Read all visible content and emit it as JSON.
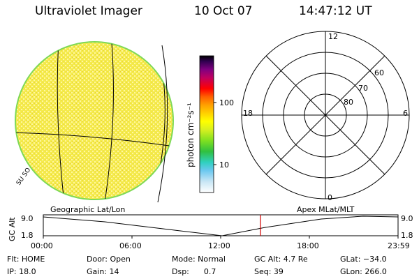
{
  "header": {
    "title": "Ultraviolet Imager",
    "date": "10 Oct 07",
    "time": "14:47:12 UT"
  },
  "colorbar": {
    "unit_label": "photon cm⁻²s⁻¹",
    "tick_100": "100",
    "tick_10": "10",
    "stops": [
      "#ffffff",
      "#c8e6f5",
      "#6cc8f0",
      "#30d0c0",
      "#30c040",
      "#80e020",
      "#d8f020",
      "#ffff00",
      "#ffd000",
      "#ffa000",
      "#ff6000",
      "#ff0000",
      "#c00060",
      "#800080",
      "#300050",
      "#000000"
    ]
  },
  "polar": {
    "mlt_top": "12",
    "mlt_left": "18",
    "mlt_right": "6",
    "mlt_bottom": "0",
    "lat_60": "60",
    "lat_70": "70",
    "lat_80": "80"
  },
  "earth": {
    "fill_color": "#f2e64a",
    "limb_color": "#7ed957",
    "corner_label": "SU SO"
  },
  "timeline": {
    "left_label": "Geographic Lat/Lon",
    "right_label": "Apex MLat/MLT",
    "yaxis_label": "GC Alt",
    "ytick_top": "9.0",
    "ytick_bottom": "1.8",
    "ytick_top_right": "9.0",
    "ytick_bottom_right": "1.8",
    "xticks": [
      "00:00",
      "06:00",
      "12:00",
      "18:00",
      "23:59"
    ],
    "marker_color": "#d00000"
  },
  "status": {
    "flt": "Flt: HOME",
    "ip": "IP: 18.0",
    "door": "Door: Open",
    "gain": "Gain: 14",
    "mode": "Mode: Normal",
    "dsp": "Dsp:      0.7",
    "gcalt": "GC Alt: 4.7 Re",
    "seq": "Seq: 39",
    "glat": "GLat: −34.0",
    "glon": "GLon: 266.0"
  }
}
